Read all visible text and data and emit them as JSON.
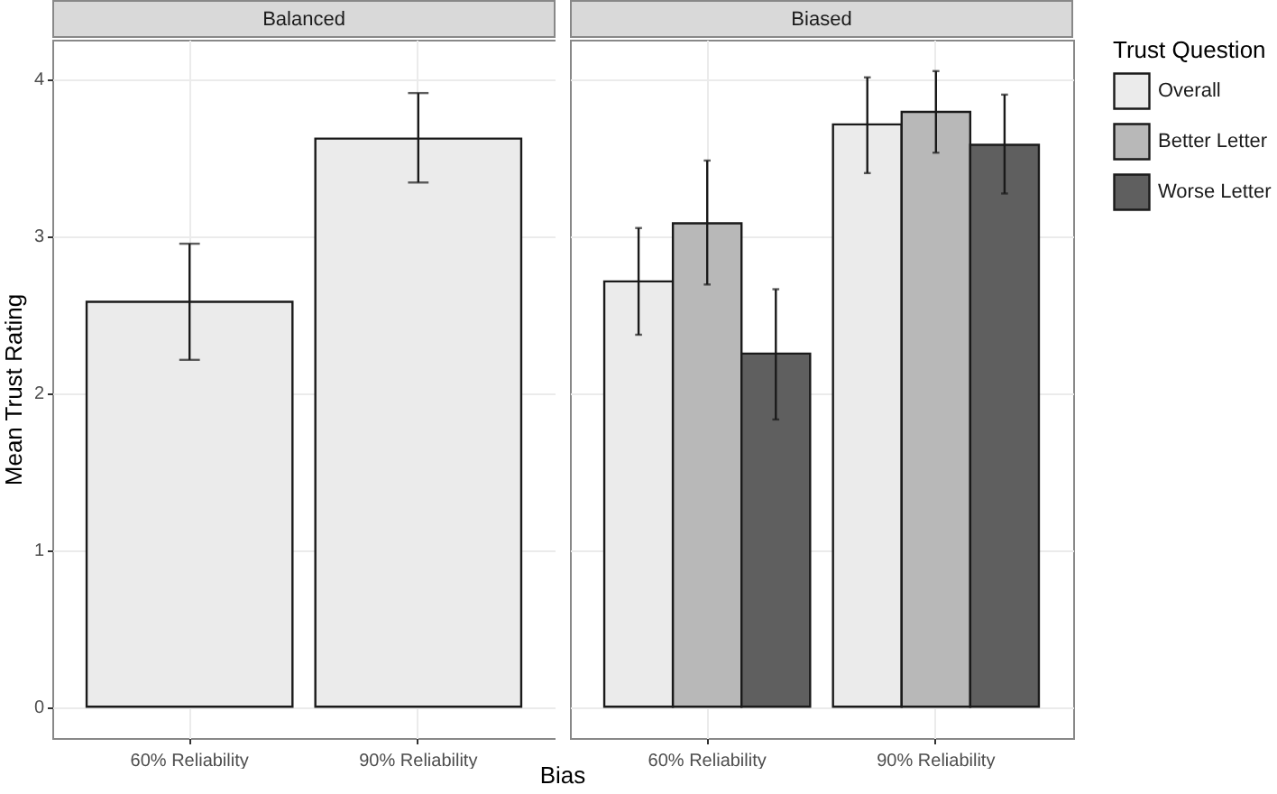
{
  "chart_data": [
    {
      "type": "bar",
      "title": "Balanced",
      "xlabel": "Bias",
      "ylabel": "Mean Trust Rating",
      "categories": [
        "60% Reliability",
        "90% Reliability"
      ],
      "series": [
        {
          "color": "#ebebeb",
          "values": [
            2.58,
            3.62
          ],
          "errors": [
            [
              2.21,
              2.95
            ],
            [
              3.34,
              3.91
            ]
          ]
        }
      ],
      "ylim": [
        -0.2,
        4.25
      ],
      "yticks": [
        0,
        1,
        2,
        3,
        4
      ],
      "grid": true
    },
    {
      "type": "bar",
      "title": "Biased",
      "legend_title": "Trust Question",
      "categories": [
        "60% Reliability",
        "90% Reliability"
      ],
      "series": [
        {
          "name": "Overall",
          "color": "#ebebeb",
          "values": [
            2.71,
            3.71
          ],
          "errors": [
            [
              2.37,
              3.05
            ],
            [
              3.4,
              4.01
            ]
          ]
        },
        {
          "name": "Better Letter",
          "color": "#b8b8b8",
          "values": [
            3.08,
            3.79
          ],
          "errors": [
            [
              2.69,
              3.48
            ],
            [
              3.53,
              4.05
            ]
          ]
        },
        {
          "name": "Worse Letter",
          "color": "#5f5f5f",
          "values": [
            2.25,
            3.58
          ],
          "errors": [
            [
              1.83,
              2.66
            ],
            [
              3.27,
              3.9
            ]
          ]
        }
      ],
      "ylim": [
        -0.2,
        4.25
      ],
      "yticks": [
        0,
        1,
        2,
        3,
        4
      ],
      "grid": true,
      "legend": "right",
      "tick_labels": "x"
    }
  ]
}
